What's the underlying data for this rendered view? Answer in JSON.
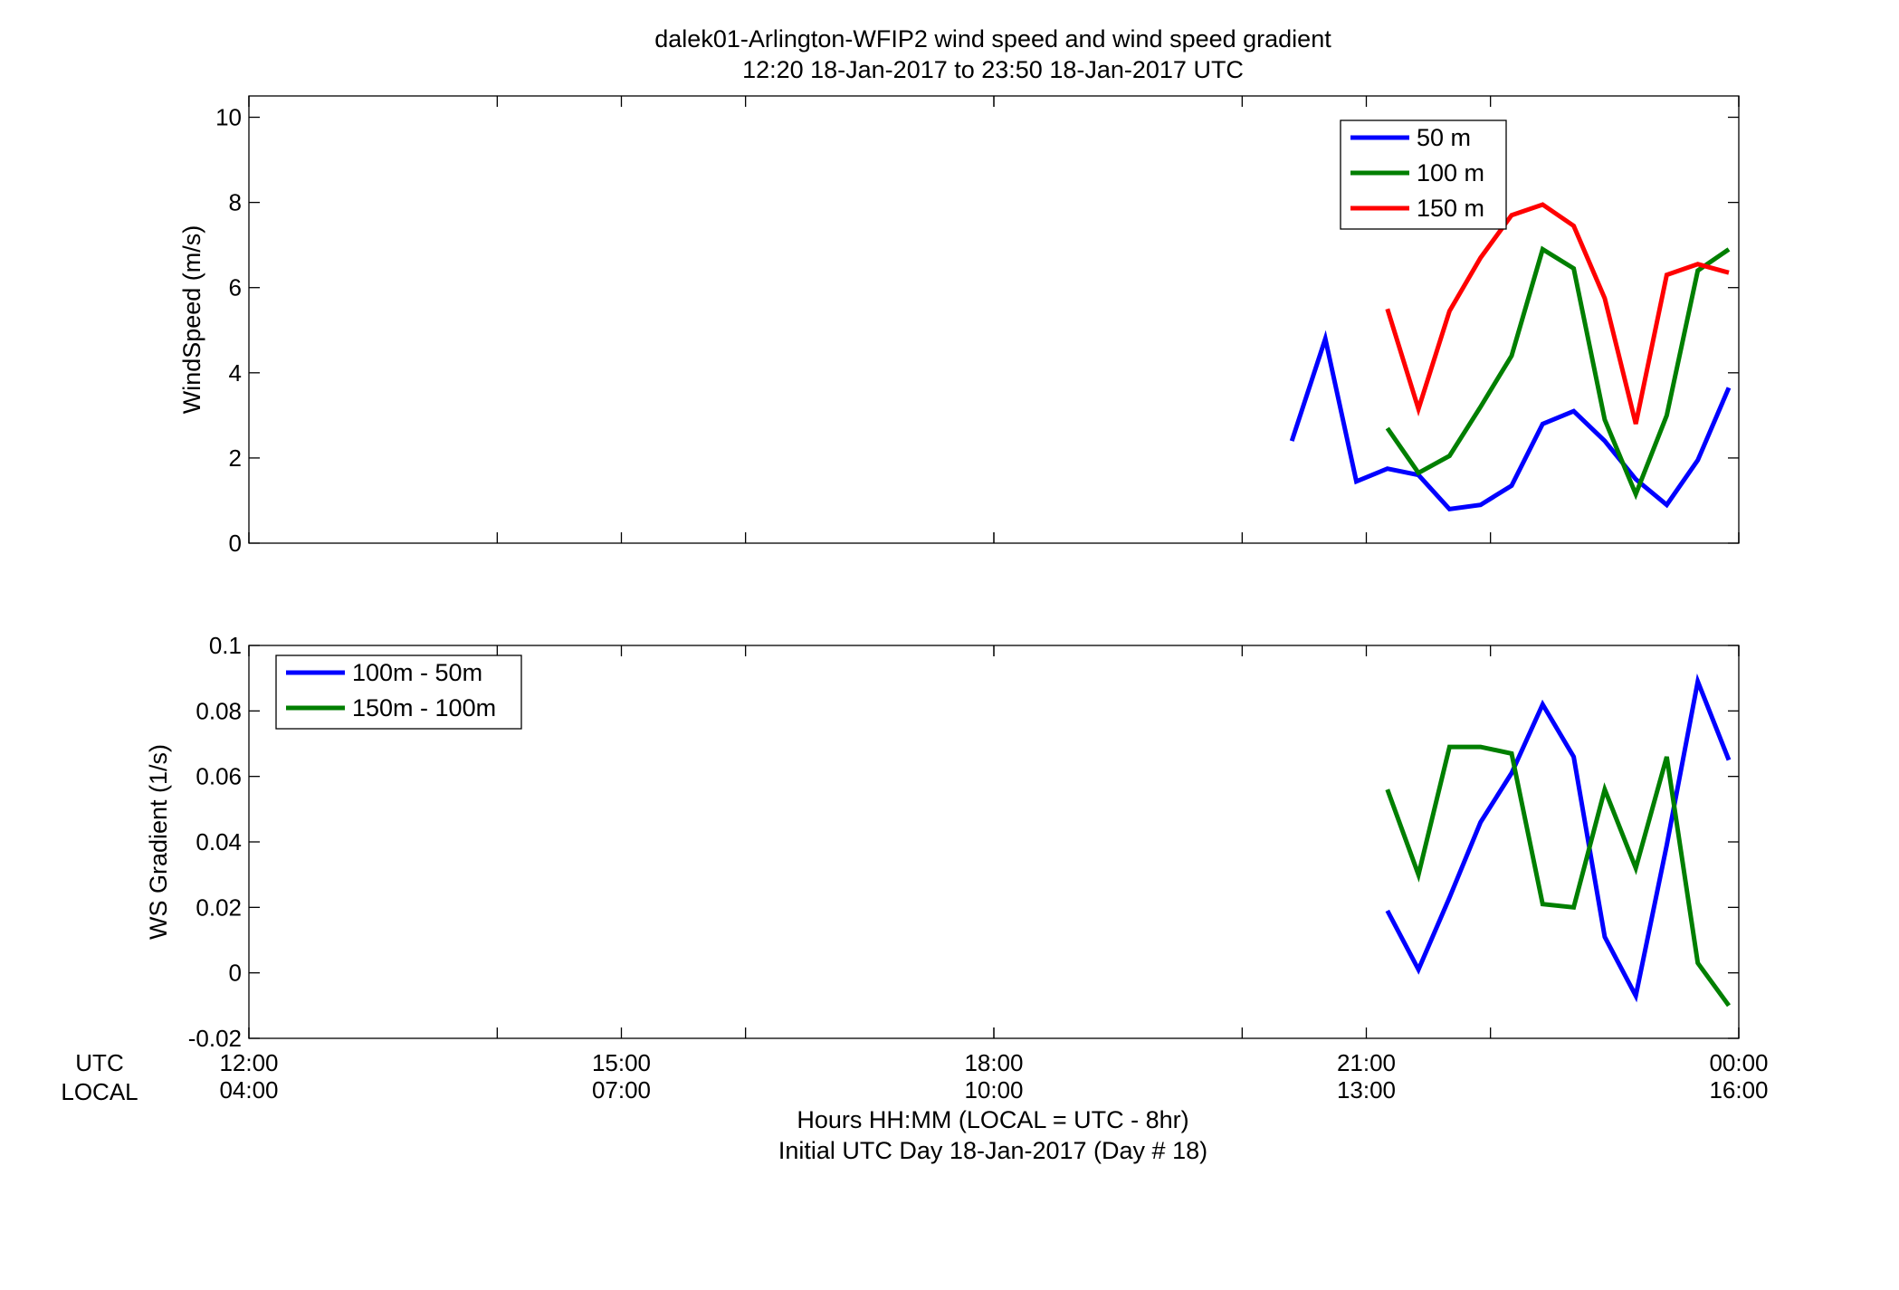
{
  "title_line1": "dalek01-Arlington-WFIP2  wind speed and wind speed gradient",
  "title_line2": "12:20 18-Jan-2017 to 23:50 18-Jan-2017  UTC",
  "bottom": {
    "row_label_utc": "UTC",
    "row_label_local": "LOCAL",
    "xlabel_line1": "Hours HH:MM  (LOCAL = UTC - 8hr)",
    "xlabel_line2": "Initial UTC Day 18-Jan-2017 (Day # 18)",
    "utc_ticks": [
      "12:00",
      "15:00",
      "18:00",
      "21:00",
      "00:00"
    ],
    "local_ticks": [
      "04:00",
      "07:00",
      "10:00",
      "13:00",
      "16:00"
    ]
  },
  "colors": {
    "blue": "#0000ff",
    "green": "#007f00",
    "red": "#ff0000"
  },
  "chart_data": [
    {
      "type": "line",
      "ylabel": "WindSpeed (m/s)",
      "ylim": [
        0,
        10.5
      ],
      "yticks": [
        0,
        2,
        4,
        6,
        8,
        10
      ],
      "xlim": [
        12,
        24
      ],
      "x_unit": "hours UTC, 18-Jan-2017",
      "grid": "ticks only",
      "legend_position": "top-right",
      "series": [
        {
          "name": "50 m",
          "color": "#0000ff",
          "x": [
            20.4,
            20.67,
            20.92,
            21.17,
            21.42,
            21.67,
            21.92,
            22.17,
            22.42,
            22.67,
            22.92,
            23.17,
            23.42,
            23.67,
            23.92
          ],
          "values": [
            2.4,
            4.8,
            1.45,
            1.75,
            1.6,
            0.8,
            0.9,
            1.35,
            2.8,
            3.1,
            2.4,
            1.5,
            0.9,
            1.95,
            3.65
          ]
        },
        {
          "name": "100 m",
          "color": "#007f00",
          "x": [
            21.17,
            21.42,
            21.67,
            21.92,
            22.17,
            22.42,
            22.67,
            22.92,
            23.17,
            23.42,
            23.67,
            23.92
          ],
          "values": [
            2.7,
            1.65,
            2.05,
            3.2,
            4.4,
            6.9,
            6.45,
            2.9,
            1.15,
            3.0,
            6.4,
            6.9
          ]
        },
        {
          "name": "150 m",
          "color": "#ff0000",
          "x": [
            21.17,
            21.42,
            21.67,
            21.92,
            22.17,
            22.42,
            22.67,
            22.92,
            23.17,
            23.42,
            23.67,
            23.92
          ],
          "values": [
            5.5,
            3.15,
            5.45,
            6.7,
            7.7,
            7.95,
            7.45,
            5.75,
            2.8,
            6.3,
            6.55,
            6.35
          ]
        }
      ]
    },
    {
      "type": "line",
      "ylabel": "WS Gradient (1/s)",
      "ylim": [
        -0.02,
        0.1
      ],
      "yticks": [
        -0.02,
        0,
        0.02,
        0.04,
        0.06,
        0.08,
        0.1
      ],
      "ytick_labels": [
        "-0.02",
        "0",
        "0.02",
        "0.04",
        "0.06",
        "0.08",
        "0.1"
      ],
      "xlim": [
        12,
        24
      ],
      "x_unit": "hours UTC, 18-Jan-2017",
      "grid": "ticks only",
      "legend_position": "top-left",
      "series": [
        {
          "name": "100m - 50m",
          "color": "#0000ff",
          "x": [
            21.17,
            21.42,
            21.67,
            21.92,
            22.17,
            22.42,
            22.67,
            22.92,
            23.17,
            23.42,
            23.67,
            23.92
          ],
          "values": [
            0.019,
            0.001,
            0.023,
            0.046,
            0.061,
            0.082,
            0.066,
            0.011,
            -0.007,
            0.039,
            0.089,
            0.065
          ]
        },
        {
          "name": "150m - 100m",
          "color": "#007f00",
          "x": [
            21.17,
            21.42,
            21.67,
            21.92,
            22.17,
            22.42,
            22.67,
            22.92,
            23.17,
            23.42,
            23.67,
            23.92
          ],
          "values": [
            0.056,
            0.03,
            0.069,
            0.069,
            0.067,
            0.021,
            0.02,
            0.056,
            0.032,
            0.066,
            0.003,
            -0.01
          ]
        }
      ]
    }
  ]
}
